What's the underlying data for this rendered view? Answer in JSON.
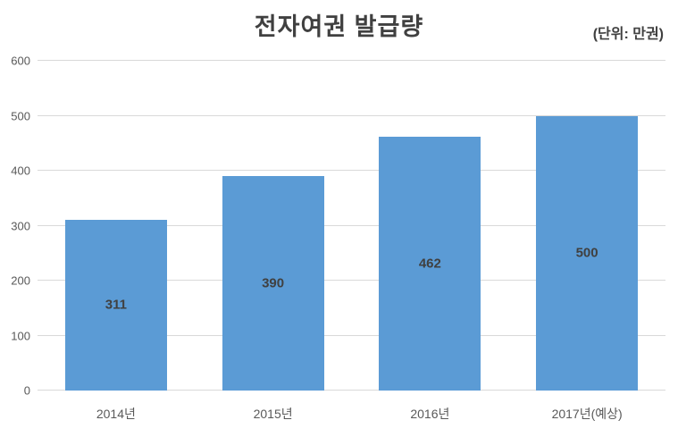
{
  "chart_data": {
    "type": "bar",
    "title": "전자여권 발급량",
    "unit_label": "(단위: 만권)",
    "categories": [
      "2014년",
      "2015년",
      "2016년",
      "2017년(예상)"
    ],
    "values": [
      311,
      390,
      462,
      500
    ],
    "xlabel": "",
    "ylabel": "",
    "ylim": [
      0,
      600
    ],
    "yticks": [
      0,
      100,
      200,
      300,
      400,
      500,
      600
    ],
    "grid": true,
    "legend": false,
    "bar_color": "#5B9BD5",
    "gridline_color": "#D9D9D9",
    "title_color": "#404040",
    "axis_text_color": "#595959",
    "data_label_color": "#404040"
  }
}
